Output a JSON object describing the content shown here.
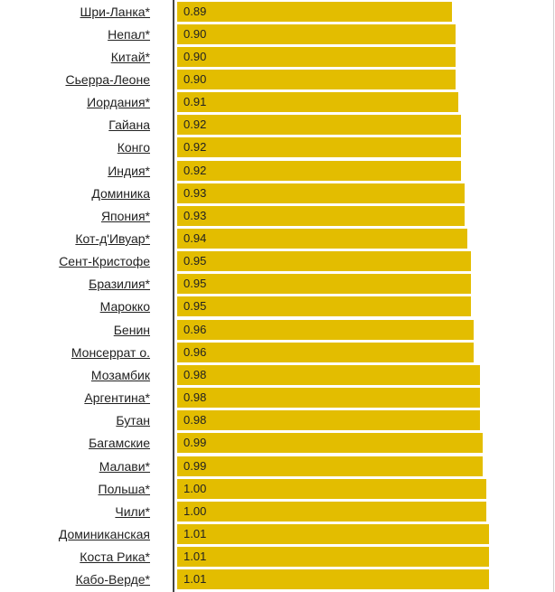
{
  "chart_data": {
    "type": "bar",
    "orientation": "horizontal",
    "bar_color": "#e3bd00",
    "categories": [
      "Шри-Ланка*",
      "Непал*",
      "Китай*",
      "Сьерра-Леоне",
      "Иордания*",
      "Гайана",
      "Конго",
      "Индия*",
      "Доминика",
      "Япония*",
      "Кот-д'Ивуар*",
      "Сент-Кристофе",
      "Бразилия*",
      "Марокко",
      "Бенин",
      "Монсеррат о.",
      "Мозамбик",
      "Аргентина*",
      "Бутан",
      "Багамские",
      "Малави*",
      "Польша*",
      "Чили*",
      "Доминиканская",
      "Коста Рика*",
      "Кабо-Верде*"
    ],
    "values": [
      0.89,
      0.9,
      0.9,
      0.9,
      0.91,
      0.92,
      0.92,
      0.92,
      0.93,
      0.93,
      0.94,
      0.95,
      0.95,
      0.95,
      0.96,
      0.96,
      0.98,
      0.98,
      0.98,
      0.99,
      0.99,
      1.0,
      1.0,
      1.01,
      1.01,
      1.01
    ],
    "value_labels": [
      "0.89",
      "0.90",
      "0.90",
      "0.90",
      "0.91",
      "0.92",
      "0.92",
      "0.92",
      "0.93",
      "0.93",
      "0.94",
      "0.95",
      "0.95",
      "0.95",
      "0.96",
      "0.96",
      "0.98",
      "0.98",
      "0.98",
      "0.99",
      "0.99",
      "1.00",
      "1.00",
      "1.01",
      "1.01",
      "1.01"
    ]
  }
}
